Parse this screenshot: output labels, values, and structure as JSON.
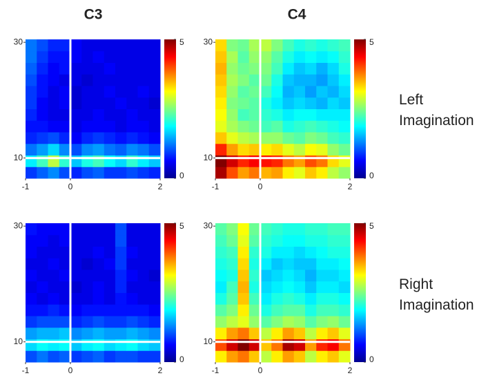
{
  "column_titles": [
    "C3",
    "C4"
  ],
  "row_labels": [
    "Left Imagination",
    "Right Imagination"
  ],
  "chart_data": [
    {
      "type": "heatmap",
      "xlim": [
        -1,
        2
      ],
      "xticks": [
        -1,
        0,
        2
      ],
      "ylim": [
        6.5,
        30.5
      ],
      "yticks": [
        10,
        30
      ],
      "clim": [
        0,
        5
      ],
      "cticks": [
        0,
        5
      ],
      "colormap": "jet",
      "vline": 0,
      "hline": 10,
      "line_color": "#ffffff",
      "values": [
        [
          0.9,
          1.1,
          1.3,
          1.0,
          0.8,
          1.0,
          1.1,
          0.9,
          0.9,
          1.0,
          0.9,
          0.8
        ],
        [
          1.8,
          2.2,
          2.8,
          2.1,
          1.6,
          2.0,
          2.2,
          1.9,
          1.7,
          2.1,
          1.8,
          1.6
        ],
        [
          1.2,
          1.4,
          1.7,
          1.3,
          1.0,
          1.3,
          1.4,
          1.2,
          1.1,
          1.3,
          1.2,
          1.0
        ],
        [
          0.8,
          0.9,
          1.0,
          0.8,
          0.6,
          0.8,
          0.9,
          0.8,
          0.7,
          0.8,
          0.7,
          0.6
        ],
        [
          0.7,
          0.7,
          0.6,
          0.6,
          0.5,
          0.6,
          0.6,
          0.6,
          0.5,
          0.6,
          0.6,
          0.5
        ],
        [
          0.8,
          0.6,
          0.5,
          0.5,
          0.5,
          0.5,
          0.6,
          0.5,
          0.5,
          0.6,
          0.5,
          0.5
        ],
        [
          0.9,
          0.6,
          0.5,
          0.6,
          0.4,
          0.5,
          0.5,
          0.5,
          0.6,
          0.5,
          0.5,
          0.4
        ],
        [
          0.9,
          0.7,
          0.5,
          0.6,
          0.4,
          0.5,
          0.5,
          0.6,
          0.5,
          0.5,
          0.6,
          0.5
        ],
        [
          1.0,
          0.7,
          0.6,
          0.5,
          0.5,
          0.4,
          0.5,
          0.5,
          0.5,
          0.5,
          0.5,
          0.5
        ],
        [
          1.1,
          0.8,
          0.6,
          0.7,
          0.5,
          0.5,
          0.5,
          0.6,
          0.5,
          0.5,
          0.5,
          0.5
        ],
        [
          1.2,
          0.9,
          0.7,
          0.7,
          0.6,
          0.5,
          0.6,
          0.5,
          0.5,
          0.5,
          0.5,
          0.5
        ],
        [
          1.2,
          1.0,
          0.8,
          0.8,
          0.6,
          0.5,
          0.5,
          0.5,
          0.5,
          0.5,
          0.5,
          0.5
        ]
      ]
    },
    {
      "type": "heatmap",
      "xlim": [
        -1,
        2
      ],
      "xticks": [
        -1,
        0,
        2
      ],
      "ylim": [
        6.5,
        30.5
      ],
      "yticks": [
        10,
        30
      ],
      "clim": [
        0,
        5
      ],
      "cticks": [
        0,
        5
      ],
      "colormap": "jet",
      "vline": 0,
      "hline": 10,
      "line_color": "#ffffff",
      "values": [
        [
          4.8,
          4.0,
          3.6,
          3.8,
          3.5,
          3.6,
          3.2,
          3.0,
          3.4,
          3.2,
          2.8,
          2.6
        ],
        [
          5.0,
          4.6,
          4.2,
          4.4,
          4.3,
          4.2,
          3.8,
          3.6,
          4.0,
          3.8,
          3.3,
          3.0
        ],
        [
          4.2,
          3.6,
          3.3,
          3.4,
          3.2,
          3.3,
          3.0,
          2.8,
          3.1,
          3.0,
          2.6,
          2.4
        ],
        [
          3.4,
          3.0,
          2.8,
          2.7,
          2.6,
          2.6,
          2.4,
          2.3,
          2.5,
          2.4,
          2.2,
          2.1
        ],
        [
          3.0,
          2.7,
          2.5,
          2.4,
          2.2,
          2.3,
          2.0,
          2.1,
          2.2,
          2.1,
          2.0,
          1.9
        ],
        [
          3.1,
          2.6,
          2.2,
          2.3,
          2.1,
          2.0,
          1.8,
          1.9,
          1.9,
          1.8,
          1.8,
          1.8
        ],
        [
          3.2,
          2.5,
          2.4,
          2.3,
          2.0,
          1.8,
          1.6,
          1.7,
          1.6,
          1.5,
          1.7,
          1.6
        ],
        [
          3.3,
          2.6,
          2.3,
          2.4,
          2.2,
          1.9,
          1.5,
          1.6,
          1.4,
          1.6,
          1.5,
          1.7
        ],
        [
          3.4,
          2.7,
          2.5,
          2.3,
          2.4,
          2.0,
          1.6,
          1.5,
          1.5,
          1.4,
          1.6,
          1.8
        ],
        [
          3.5,
          2.6,
          2.4,
          2.5,
          2.5,
          2.2,
          1.8,
          1.6,
          1.7,
          1.5,
          1.7,
          2.0
        ],
        [
          3.4,
          2.7,
          2.3,
          2.6,
          2.6,
          2.3,
          2.0,
          1.8,
          1.9,
          1.8,
          1.9,
          2.1
        ],
        [
          3.3,
          2.5,
          2.4,
          2.7,
          2.8,
          2.5,
          2.2,
          2.0,
          2.1,
          2.0,
          2.1,
          2.2
        ]
      ]
    },
    {
      "type": "heatmap",
      "xlim": [
        -1,
        2
      ],
      "xticks": [
        -1,
        0,
        2
      ],
      "ylim": [
        6.5,
        30.5
      ],
      "yticks": [
        10,
        30
      ],
      "clim": [
        0,
        5
      ],
      "cticks": [
        0,
        5
      ],
      "colormap": "jet",
      "vline": 0,
      "hline": 10,
      "line_color": "#ffffff",
      "values": [
        [
          1.0,
          1.2,
          1.0,
          1.1,
          0.9,
          1.0,
          1.1,
          0.9,
          1.0,
          1.0,
          0.9,
          0.9
        ],
        [
          1.7,
          1.9,
          1.8,
          1.9,
          1.6,
          1.8,
          1.9,
          1.7,
          1.8,
          1.9,
          1.7,
          1.6
        ],
        [
          1.4,
          1.5,
          1.5,
          1.6,
          1.3,
          1.4,
          1.5,
          1.4,
          1.4,
          1.5,
          1.4,
          1.3
        ],
        [
          0.9,
          1.0,
          1.0,
          1.0,
          0.8,
          0.9,
          1.0,
          0.9,
          0.9,
          1.0,
          0.9,
          0.8
        ],
        [
          0.7,
          0.7,
          0.8,
          0.7,
          0.6,
          0.7,
          0.7,
          0.7,
          0.7,
          0.7,
          0.7,
          0.6
        ],
        [
          0.6,
          0.5,
          0.6,
          0.5,
          0.5,
          0.5,
          0.6,
          0.5,
          0.7,
          0.6,
          0.5,
          0.5
        ],
        [
          0.5,
          0.6,
          0.5,
          0.5,
          0.4,
          0.5,
          0.6,
          0.5,
          0.8,
          0.5,
          0.5,
          0.5
        ],
        [
          0.6,
          0.5,
          0.5,
          0.6,
          0.5,
          0.5,
          0.5,
          0.5,
          0.8,
          0.6,
          0.5,
          0.4
        ],
        [
          0.5,
          0.5,
          0.6,
          0.5,
          0.5,
          0.4,
          0.5,
          0.6,
          0.9,
          0.5,
          0.5,
          0.5
        ],
        [
          0.6,
          0.5,
          0.5,
          0.5,
          0.5,
          0.5,
          0.6,
          0.5,
          0.9,
          0.6,
          0.5,
          0.5
        ],
        [
          0.6,
          0.6,
          0.5,
          0.6,
          0.5,
          0.5,
          0.5,
          0.5,
          1.0,
          0.5,
          0.5,
          0.5
        ],
        [
          0.7,
          0.6,
          0.6,
          0.6,
          0.5,
          0.5,
          0.5,
          0.5,
          1.0,
          0.5,
          0.5,
          0.5
        ]
      ]
    },
    {
      "type": "heatmap",
      "xlim": [
        -1,
        2
      ],
      "xticks": [
        -1,
        0,
        2
      ],
      "ylim": [
        6.5,
        30.5
      ],
      "yticks": [
        10,
        30
      ],
      "clim": [
        0,
        5
      ],
      "cticks": [
        0,
        5
      ],
      "colormap": "jet",
      "vline": 0,
      "hline": 10,
      "line_color": "#ffffff",
      "values": [
        [
          3.2,
          3.6,
          3.8,
          3.4,
          2.8,
          3.2,
          3.6,
          3.4,
          2.8,
          3.2,
          3.4,
          3.0
        ],
        [
          4.0,
          4.6,
          5.0,
          4.6,
          3.4,
          3.8,
          4.8,
          4.6,
          3.6,
          4.2,
          4.4,
          3.8
        ],
        [
          3.2,
          3.6,
          3.8,
          3.4,
          2.8,
          3.2,
          3.6,
          3.4,
          2.8,
          3.2,
          3.4,
          3.0
        ],
        [
          2.6,
          2.8,
          3.0,
          2.6,
          2.3,
          2.5,
          2.7,
          2.6,
          2.3,
          2.5,
          2.6,
          2.4
        ],
        [
          2.3,
          2.5,
          3.2,
          2.4,
          2.0,
          2.2,
          2.3,
          2.3,
          2.0,
          2.2,
          2.2,
          2.1
        ],
        [
          2.0,
          2.3,
          3.4,
          2.2,
          1.8,
          2.0,
          2.1,
          2.0,
          1.8,
          2.0,
          2.0,
          1.9
        ],
        [
          1.8,
          2.2,
          3.5,
          2.0,
          1.7,
          1.8,
          1.9,
          1.8,
          1.6,
          1.8,
          1.8,
          1.7
        ],
        [
          1.9,
          2.0,
          3.4,
          2.1,
          1.6,
          1.7,
          1.8,
          1.7,
          1.5,
          1.7,
          1.7,
          1.8
        ],
        [
          2.0,
          2.1,
          3.3,
          2.0,
          1.8,
          1.6,
          1.7,
          1.6,
          1.6,
          1.8,
          1.8,
          1.9
        ],
        [
          2.1,
          2.2,
          3.2,
          2.1,
          2.0,
          1.8,
          1.8,
          1.7,
          1.8,
          1.9,
          2.0,
          2.0
        ],
        [
          2.2,
          2.4,
          3.0,
          2.3,
          2.1,
          2.0,
          1.9,
          1.9,
          2.0,
          2.0,
          2.1,
          2.1
        ],
        [
          2.3,
          2.5,
          3.1,
          2.4,
          2.2,
          2.1,
          2.0,
          2.0,
          2.1,
          2.1,
          2.2,
          2.2
        ]
      ]
    }
  ]
}
